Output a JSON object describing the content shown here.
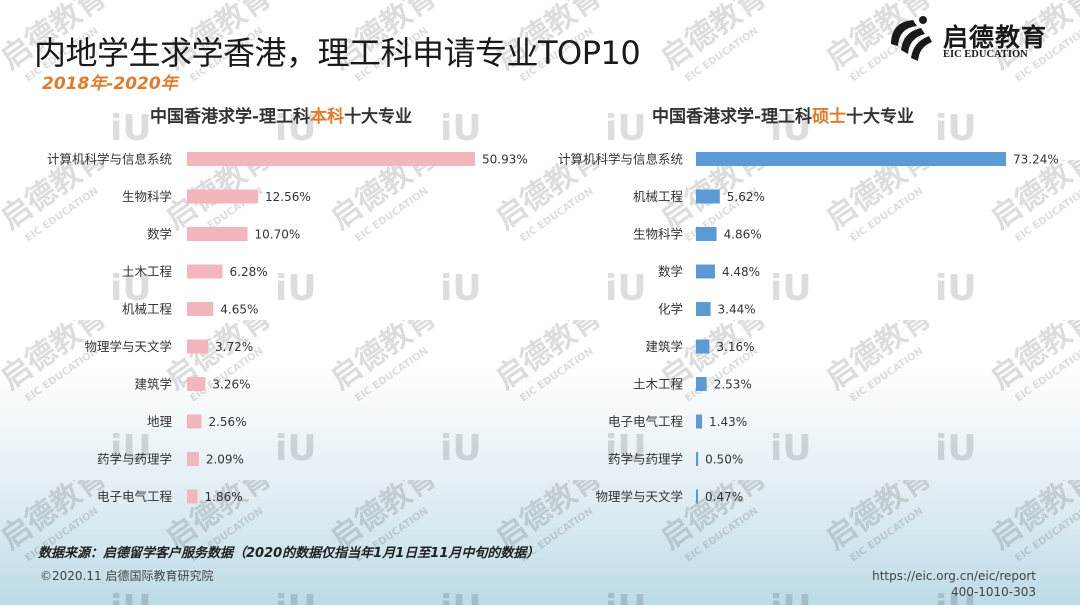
{
  "header": {
    "title": "内地学生求学香港，理工科申请专业TOP10",
    "subtitle": "2018年-2020年"
  },
  "logo": {
    "name_cn": "启德教育",
    "name_en": "EIC EDUCATION"
  },
  "chart_data": [
    {
      "type": "bar",
      "orientation": "horizontal",
      "title_prefix": "中国香港求学-理工科",
      "title_highlight": "本科",
      "title_suffix": "十大专业",
      "categories": [
        "计算机科学与信息系统",
        "生物科学",
        "数学",
        "土木工程",
        "机械工程",
        "物理学与天文学",
        "建筑学",
        "地理",
        "药学与药理学",
        "电子电气工程"
      ],
      "values": [
        50.93,
        12.56,
        10.7,
        6.28,
        4.65,
        3.72,
        3.26,
        2.56,
        2.09,
        1.86
      ],
      "value_labels": [
        "50.93%",
        "12.56%",
        "10.70%",
        "6.28%",
        "4.65%",
        "3.72%",
        "3.26%",
        "2.56%",
        "2.09%",
        "1.86%"
      ],
      "unit": "%",
      "color": "#f4b6bd",
      "grid": false,
      "legend": "none"
    },
    {
      "type": "bar",
      "orientation": "horizontal",
      "title_prefix": "中国香港求学-理工科",
      "title_highlight": "硕士",
      "title_suffix": "十大专业",
      "categories": [
        "计算机科学与信息系统",
        "机械工程",
        "生物科学",
        "数学",
        "化学",
        "建筑学",
        "土木工程",
        "电子电气工程",
        "药学与药理学",
        "物理学与天文学"
      ],
      "values": [
        73.24,
        5.62,
        4.86,
        4.48,
        3.44,
        3.16,
        2.53,
        1.43,
        0.5,
        0.47
      ],
      "value_labels": [
        "73.24%",
        "5.62%",
        "4.86%",
        "4.48%",
        "3.44%",
        "3.16%",
        "2.53%",
        "1.43%",
        "0.50%",
        "0.47%"
      ],
      "unit": "%",
      "color": "#5b9bd5",
      "grid": false,
      "legend": "none"
    }
  ],
  "footer": {
    "source": "数据来源：启德留学客户服务数据（2020的数据仅指当年1月1日至11月中旬的数据）",
    "copyright": "©2020.11 启德国际教育研究院",
    "url": "https://eic.org.cn/eic/report",
    "phone": "400-1010-303"
  }
}
